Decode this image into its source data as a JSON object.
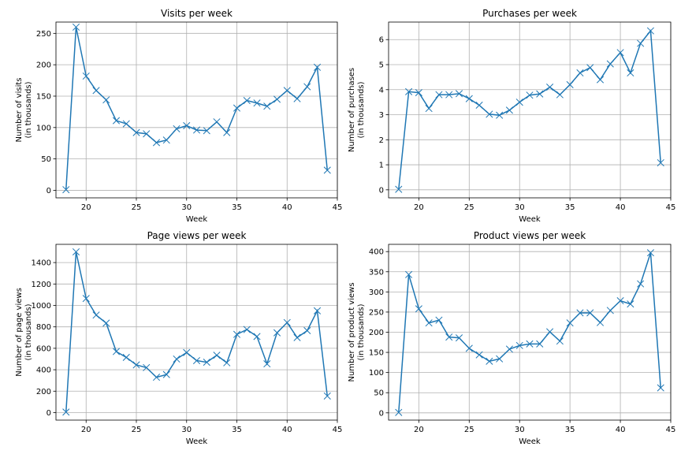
{
  "colors": {
    "series": "#1f77b4"
  },
  "chart_data": [
    {
      "type": "line",
      "title": "Visits per week",
      "xlabel": "Week",
      "ylabel": [
        "Number of visits",
        "(in thousands)"
      ],
      "xlim": [
        17,
        45
      ],
      "ylim": [
        -12,
        268
      ],
      "xticks": [
        20,
        25,
        30,
        35,
        40,
        45
      ],
      "yticks": [
        0,
        50,
        100,
        150,
        200,
        250
      ],
      "grid": true,
      "marker": "x",
      "x": [
        18,
        19,
        20,
        21,
        22,
        23,
        24,
        25,
        26,
        27,
        28,
        29,
        30,
        31,
        32,
        33,
        34,
        35,
        36,
        37,
        38,
        39,
        40,
        41,
        42,
        43,
        44
      ],
      "series": [
        {
          "values": [
            1,
            260,
            182,
            159,
            144,
            111,
            106,
            92,
            90,
            76,
            80,
            98,
            103,
            96,
            95,
            109,
            92,
            131,
            143,
            139,
            134,
            145,
            159,
            146,
            165,
            196,
            32
          ]
        }
      ]
    },
    {
      "type": "line",
      "title": "Purchases per week",
      "xlabel": "Week",
      "ylabel": [
        "Number of purchases",
        "(in thousands)"
      ],
      "xlim": [
        17,
        45
      ],
      "ylim": [
        -0.32,
        6.7
      ],
      "xticks": [
        20,
        25,
        30,
        35,
        40,
        45
      ],
      "yticks": [
        0,
        1,
        2,
        3,
        4,
        5,
        6
      ],
      "grid": true,
      "marker": "x",
      "x": [
        18,
        19,
        20,
        21,
        22,
        23,
        24,
        25,
        26,
        27,
        28,
        29,
        30,
        31,
        32,
        33,
        34,
        35,
        36,
        37,
        38,
        39,
        40,
        41,
        42,
        43,
        44
      ],
      "series": [
        {
          "values": [
            0.02,
            3.92,
            3.88,
            3.25,
            3.8,
            3.8,
            3.84,
            3.64,
            3.38,
            3.02,
            2.98,
            3.18,
            3.5,
            3.78,
            3.83,
            4.1,
            3.8,
            4.2,
            4.67,
            4.88,
            4.4,
            5.03,
            5.48,
            4.67,
            5.85,
            6.35,
            1.08
          ]
        }
      ]
    },
    {
      "type": "line",
      "title": "Page views per week",
      "xlabel": "Week",
      "ylabel": [
        "Number of page views",
        "(in thousands)"
      ],
      "xlim": [
        17,
        45
      ],
      "ylim": [
        -70,
        1570
      ],
      "xticks": [
        20,
        25,
        30,
        35,
        40,
        45
      ],
      "yticks": [
        0,
        200,
        400,
        600,
        800,
        1000,
        1200,
        1400
      ],
      "grid": true,
      "marker": "x",
      "x": [
        18,
        19,
        20,
        21,
        22,
        23,
        24,
        25,
        26,
        27,
        28,
        29,
        30,
        31,
        32,
        33,
        34,
        35,
        36,
        37,
        38,
        39,
        40,
        41,
        42,
        43,
        44
      ],
      "series": [
        {
          "values": [
            5,
            1500,
            1065,
            910,
            835,
            570,
            515,
            445,
            420,
            330,
            355,
            500,
            560,
            485,
            470,
            535,
            465,
            730,
            775,
            710,
            455,
            745,
            840,
            700,
            765,
            950,
            155
          ]
        }
      ]
    },
    {
      "type": "line",
      "title": "Product views per week",
      "xlabel": "Week",
      "ylabel": [
        "Number of product views",
        "(in thousands)"
      ],
      "xlim": [
        17,
        45
      ],
      "ylim": [
        -18,
        418
      ],
      "xticks": [
        20,
        25,
        30,
        35,
        40,
        45
      ],
      "yticks": [
        0,
        50,
        100,
        150,
        200,
        250,
        300,
        350,
        400
      ],
      "grid": true,
      "marker": "x",
      "x": [
        18,
        19,
        20,
        21,
        22,
        23,
        24,
        25,
        26,
        27,
        28,
        29,
        30,
        31,
        32,
        33,
        34,
        35,
        36,
        37,
        38,
        39,
        40,
        41,
        42,
        43,
        44
      ],
      "series": [
        {
          "values": [
            1,
            343,
            258,
            223,
            230,
            188,
            186,
            160,
            144,
            128,
            134,
            158,
            167,
            171,
            171,
            201,
            178,
            223,
            248,
            248,
            224,
            254,
            278,
            270,
            320,
            397,
            62
          ]
        }
      ]
    }
  ]
}
